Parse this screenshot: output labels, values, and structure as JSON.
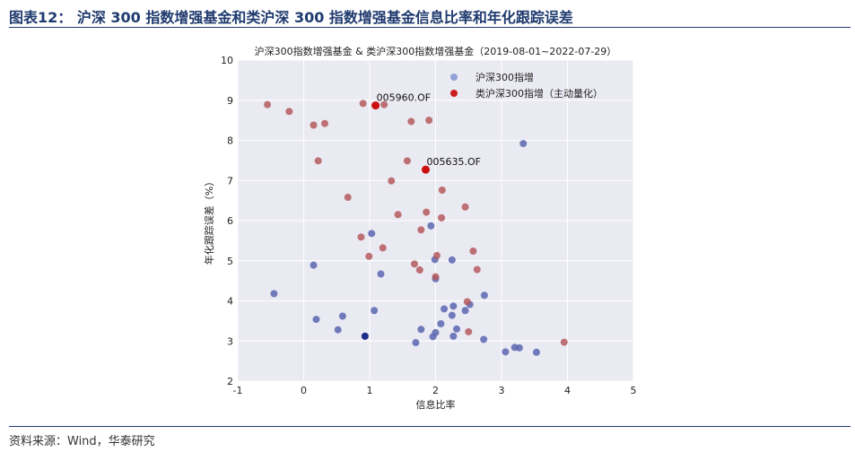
{
  "figure": {
    "title": "图表12：  沪深 300 指数增强基金和类沪深 300 指数增强基金信息比率和年化跟踪误差",
    "source": "资料来源：Wind，华泰研究"
  },
  "chart_data": {
    "type": "scatter",
    "title": "沪深300指数增强基金 & 类沪深300指数增强基金（2019-08-01~2022-07-29）",
    "xlabel": "信息比率",
    "ylabel": "年化跟踪误差（%）",
    "xlim": [
      -1,
      5
    ],
    "ylim": [
      2,
      10
    ],
    "xticks": [
      "-1",
      "0",
      "1",
      "2",
      "3",
      "4",
      "5"
    ],
    "yticks": [
      "2",
      "3",
      "4",
      "5",
      "6",
      "7",
      "8",
      "9",
      "10"
    ],
    "grid": true,
    "legend_position": "top-right",
    "colors": {
      "series1": "#5b66b0",
      "series2": "#b55a5e",
      "highlight1": "#1f2a8a",
      "highlight2": "#cc0f0f"
    },
    "series": [
      {
        "name": "沪深300指增",
        "legend_color": "#8fa2d4",
        "points": [
          [
            3.33,
            7.92
          ],
          [
            1.93,
            5.87
          ],
          [
            1.03,
            5.68
          ],
          [
            1.99,
            5.03
          ],
          [
            2.25,
            5.02
          ],
          [
            0.15,
            4.89
          ],
          [
            1.17,
            4.67
          ],
          [
            2.0,
            4.55
          ],
          [
            -0.45,
            4.18
          ],
          [
            2.74,
            4.14
          ],
          [
            2.52,
            3.91
          ],
          [
            2.27,
            3.87
          ],
          [
            1.07,
            3.76
          ],
          [
            2.45,
            3.76
          ],
          [
            2.13,
            3.8
          ],
          [
            0.59,
            3.62
          ],
          [
            0.19,
            3.54
          ],
          [
            2.25,
            3.64
          ],
          [
            2.08,
            3.43
          ],
          [
            0.52,
            3.28
          ],
          [
            1.78,
            3.29
          ],
          [
            2.32,
            3.3
          ],
          [
            2.0,
            3.21
          ],
          [
            1.96,
            3.11
          ],
          [
            2.27,
            3.12
          ],
          [
            2.73,
            3.04
          ],
          [
            1.7,
            2.96
          ],
          [
            3.2,
            2.84
          ],
          [
            3.27,
            2.83
          ],
          [
            3.06,
            2.73
          ],
          [
            3.53,
            2.72
          ],
          [
            0.93,
            3.12
          ]
        ]
      },
      {
        "name": "类沪深300指增（主动量化）",
        "legend_color": "#cc1f1f",
        "points": [
          [
            -0.55,
            8.89
          ],
          [
            -0.22,
            8.72
          ],
          [
            0.15,
            8.38
          ],
          [
            0.32,
            8.42
          ],
          [
            0.9,
            8.92
          ],
          [
            1.22,
            8.89
          ],
          [
            1.63,
            8.47
          ],
          [
            1.9,
            8.5
          ],
          [
            0.22,
            7.49
          ],
          [
            1.57,
            7.49
          ],
          [
            1.33,
            6.99
          ],
          [
            2.1,
            6.76
          ],
          [
            0.67,
            6.58
          ],
          [
            2.45,
            6.34
          ],
          [
            1.43,
            6.15
          ],
          [
            1.86,
            6.21
          ],
          [
            2.09,
            6.07
          ],
          [
            1.78,
            5.77
          ],
          [
            0.87,
            5.59
          ],
          [
            1.2,
            5.32
          ],
          [
            2.57,
            5.24
          ],
          [
            0.99,
            5.11
          ],
          [
            2.02,
            5.13
          ],
          [
            1.68,
            4.92
          ],
          [
            1.76,
            4.77
          ],
          [
            2.63,
            4.78
          ],
          [
            2.0,
            4.6
          ],
          [
            2.48,
            3.98
          ],
          [
            2.5,
            3.23
          ],
          [
            3.95,
            2.97
          ]
        ]
      }
    ],
    "annotations": [
      {
        "text": "005960.OF",
        "x": 1.09,
        "y": 8.87,
        "color": "#cc0f0f"
      },
      {
        "text": "005635.OF",
        "x": 1.85,
        "y": 7.27,
        "color": "#cc0f0f"
      }
    ]
  }
}
